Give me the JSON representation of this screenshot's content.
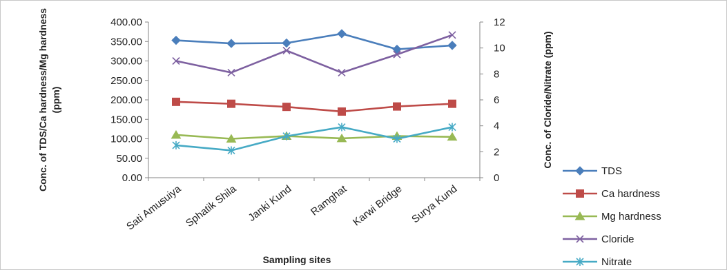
{
  "chart_data": {
    "type": "line",
    "categories": [
      "Sati Amusuiya",
      "Sphatik Shila",
      "Janki Kund",
      "Ramghat",
      "Karwi Bridge",
      "Surya Kund"
    ],
    "xlabel": "Sampling sites",
    "ylabel_left": "Conc. of TDS/Ca hardness/Mg hardness (ppm)",
    "ylabel_left_line1": "Conc. of TDS/Ca hardness/Mg hardness",
    "ylabel_left_line2": "(ppm)",
    "ylabel_right": "Conc. of Cloride/Nitrate (ppm)",
    "ylim_left": [
      0,
      400
    ],
    "ylim_right": [
      0,
      12
    ],
    "yticks_left": [
      "0.00",
      "50.00",
      "100.00",
      "150.00",
      "200.00",
      "250.00",
      "300.00",
      "350.00",
      "400.00"
    ],
    "yticks_right": [
      "0",
      "2",
      "4",
      "6",
      "8",
      "10",
      "12"
    ],
    "grid": false,
    "legend_position": "right",
    "series": [
      {
        "name": "TDS",
        "axis": "left",
        "color": "#4a7ebb",
        "marker": "diamond",
        "values": [
          353,
          345,
          346,
          370,
          330,
          340
        ]
      },
      {
        "name": "Ca hardness",
        "axis": "left",
        "color": "#be4b48",
        "marker": "square",
        "values": [
          195,
          190,
          182,
          170,
          183,
          190
        ]
      },
      {
        "name": "Mg hardness",
        "axis": "left",
        "color": "#98b954",
        "marker": "triangle",
        "values": [
          110,
          100,
          107,
          101,
          107,
          105
        ]
      },
      {
        "name": "Cloride",
        "axis": "right",
        "color": "#7d60a0",
        "marker": "x",
        "values": [
          9.0,
          8.1,
          9.8,
          8.1,
          9.5,
          11.0
        ]
      },
      {
        "name": "Nitrate",
        "axis": "right",
        "color": "#46aac5",
        "marker": "star",
        "values": [
          2.5,
          2.1,
          3.2,
          3.9,
          3.0,
          3.9
        ]
      }
    ]
  }
}
